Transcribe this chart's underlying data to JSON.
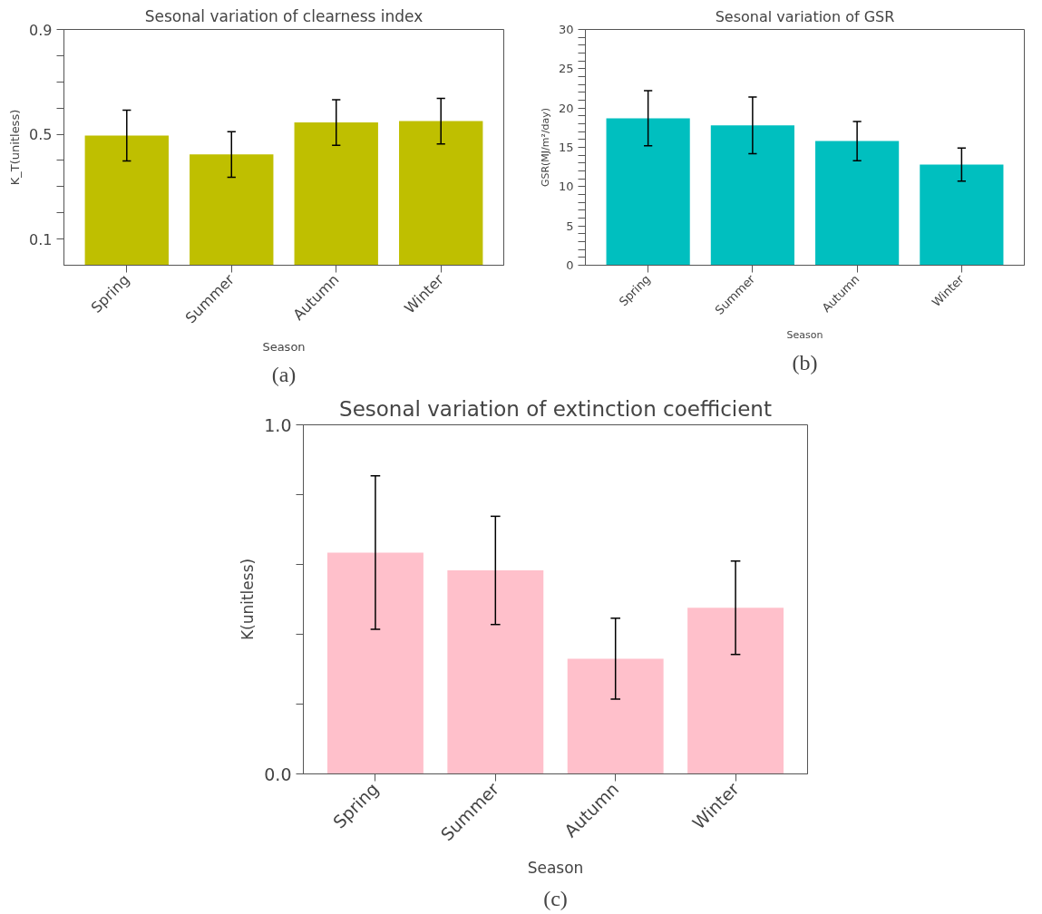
{
  "chart_data": [
    {
      "type": "bar",
      "title": "Sesonal variation of clearness index",
      "xlabel": "Season",
      "ylabel": "K_T(unitless)",
      "categories": [
        "Spring",
        "Summer",
        "Autumn",
        "Winter"
      ],
      "values": [
        0.495,
        0.423,
        0.545,
        0.55
      ],
      "errors": [
        0.097,
        0.087,
        0.087,
        0.087
      ],
      "color": "#bfbf00",
      "ylim": [
        0,
        0.9
      ],
      "yticks": [
        0.1,
        {
          "value": 0.2,
          "label": null
        },
        {
          "value": 0.3,
          "label": null
        },
        {
          "value": 0.4,
          "label": null
        },
        0.5,
        {
          "value": 0.6,
          "label": null
        },
        {
          "value": 0.7,
          "label": null
        },
        {
          "value": 0.8,
          "label": null
        },
        0.9
      ],
      "annotations": [
        "(a)"
      ]
    },
    {
      "type": "bar",
      "title": "Sesonal variation of GSR",
      "xlabel": "Season",
      "ylabel": "GSR(MJ/m²/day)",
      "categories": [
        "Spring",
        "Summer",
        "Autumn",
        "Winter"
      ],
      "values": [
        18.7,
        17.8,
        15.8,
        12.8
      ],
      "errors": [
        3.5,
        3.6,
        2.5,
        2.1
      ],
      "color": "#00bfbf",
      "ylim": [
        0,
        30
      ],
      "yticks": [
        0,
        {
          "value": 1,
          "label": null
        },
        {
          "value": 2,
          "label": null
        },
        {
          "value": 3,
          "label": null
        },
        {
          "value": 4,
          "label": null
        },
        5,
        {
          "value": 6,
          "label": null
        },
        {
          "value": 7,
          "label": null
        },
        {
          "value": 8,
          "label": null
        },
        {
          "value": 9,
          "label": null
        },
        10,
        {
          "value": 11,
          "label": null
        },
        {
          "value": 12,
          "label": null
        },
        {
          "value": 13,
          "label": null
        },
        {
          "value": 14,
          "label": null
        },
        15,
        {
          "value": 16,
          "label": null
        },
        {
          "value": 17,
          "label": null
        },
        {
          "value": 18,
          "label": null
        },
        {
          "value": 19,
          "label": null
        },
        20,
        {
          "value": 21,
          "label": null
        },
        {
          "value": 22,
          "label": null
        },
        {
          "value": 23,
          "label": null
        },
        {
          "value": 24,
          "label": null
        },
        25,
        {
          "value": 26,
          "label": null
        },
        {
          "value": 27,
          "label": null
        },
        {
          "value": 28,
          "label": null
        },
        {
          "value": 29,
          "label": null
        },
        30
      ],
      "annotations": [
        "(b)"
      ]
    },
    {
      "type": "bar",
      "title": "Sesonal variation of extinction coefficient",
      "xlabel": "Season",
      "ylabel": "K(unitless)",
      "categories": [
        "Spring",
        "Summer",
        "Autumn",
        "Winter"
      ],
      "values": [
        0.634,
        0.583,
        0.33,
        0.476
      ],
      "errors": [
        0.22,
        0.155,
        0.116,
        0.134
      ],
      "color": "#ffc0cb",
      "ylim": [
        0,
        1.0
      ],
      "yticks": [
        {
          "value": 0.0,
          "label": "0.0"
        },
        {
          "value": 0.2,
          "label": null
        },
        {
          "value": 0.4,
          "label": null
        },
        {
          "value": 0.6,
          "label": null
        },
        {
          "value": 0.8,
          "label": null
        },
        {
          "value": 1.0,
          "label": "1.0"
        }
      ],
      "annotations": [
        "(c)"
      ]
    }
  ]
}
